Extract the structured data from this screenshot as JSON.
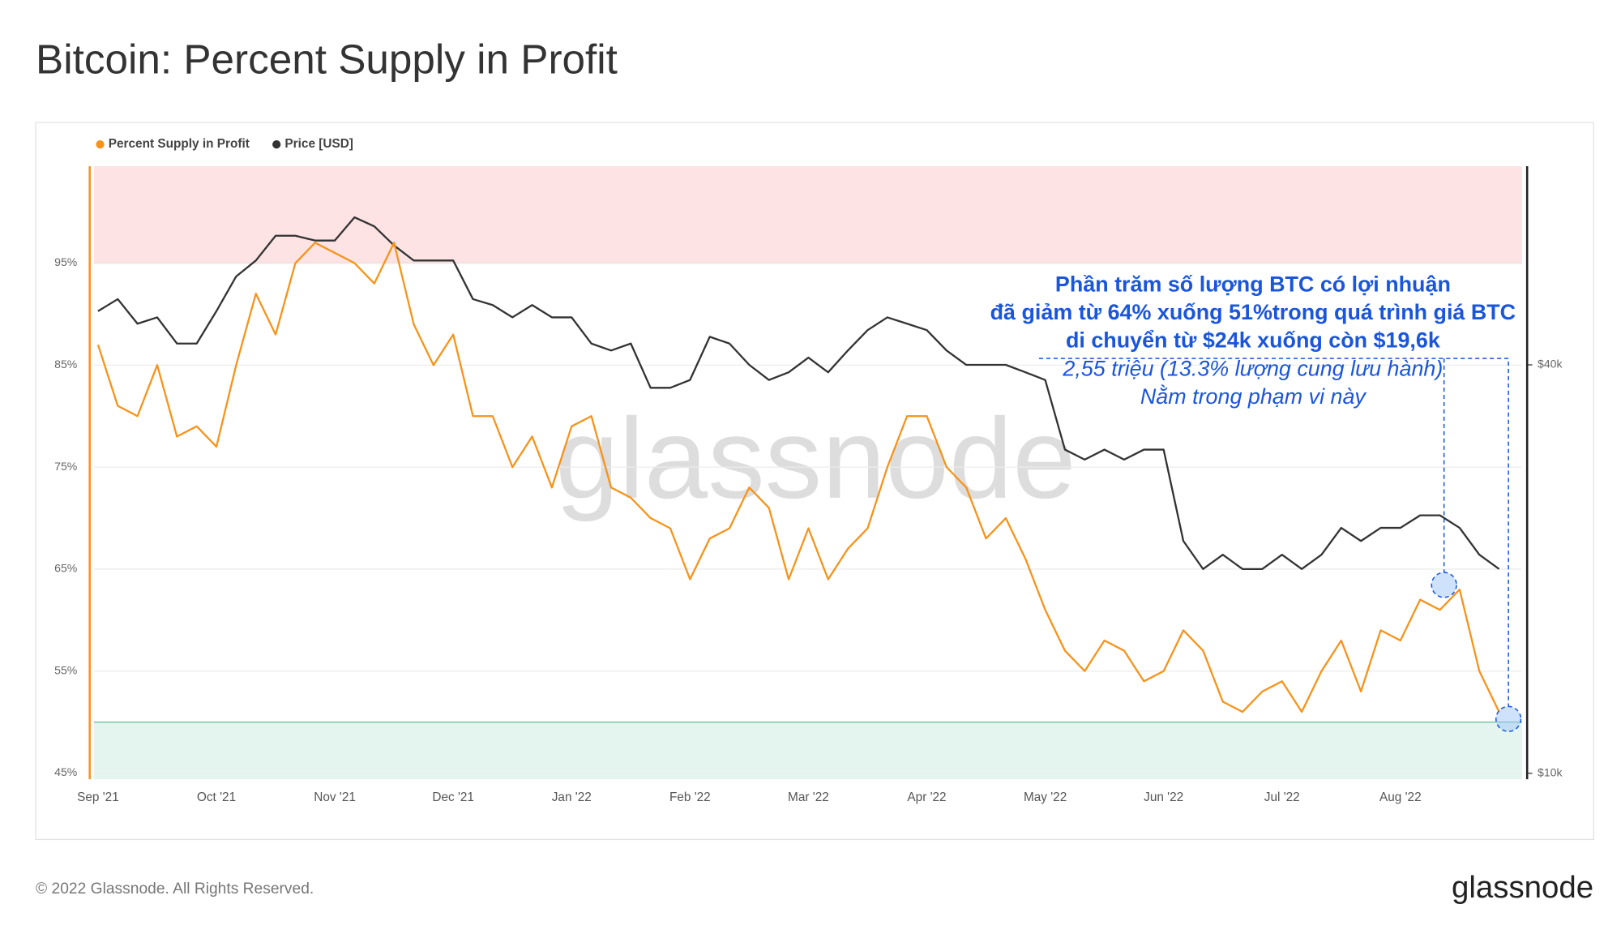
{
  "chart_data": {
    "type": "line",
    "title": "Bitcoin: Percent Supply in Profit",
    "watermark": "glassnode",
    "footer": "© 2022 Glassnode. All Rights Reserved.",
    "logo": "glassnode",
    "annotation": [
      "Phần trăm số lượng BTC có lợi nhuận",
      "đã giảm từ 64% xuống 51%trong quá trình giá BTC",
      "di chuyển từ $24k xuống còn $19,6k",
      "2,55 triệu (13.3% lượng cung lưu hành)",
      "Nằm trong phạm vi này"
    ],
    "categories": [
      "Sep '21",
      null,
      null,
      null,
      null,
      null,
      "Oct '21",
      null,
      null,
      null,
      null,
      null,
      "Nov '21",
      null,
      null,
      null,
      null,
      null,
      "Dec '21",
      null,
      null,
      null,
      null,
      null,
      "Jan '22",
      null,
      null,
      null,
      null,
      null,
      "Feb '22",
      null,
      null,
      null,
      null,
      null,
      "Mar '22",
      null,
      null,
      null,
      null,
      null,
      "Apr '22",
      null,
      null,
      null,
      null,
      null,
      "May '22",
      null,
      null,
      null,
      null,
      null,
      "Jun '22",
      null,
      null,
      null,
      null,
      null,
      "Jul '22",
      null,
      null,
      null,
      null,
      null,
      "Aug '22",
      null,
      null,
      null,
      null,
      null
    ],
    "series": [
      {
        "name": "Percent Supply in Profit",
        "color": "#f7931a",
        "axis": "y",
        "values": [
          87,
          81,
          80,
          85,
          78,
          79,
          77,
          85,
          92,
          88,
          95,
          97,
          96,
          95,
          93,
          97,
          89,
          85,
          88,
          80,
          80,
          75,
          78,
          73,
          79,
          80,
          73,
          72,
          70,
          69,
          64,
          68,
          69,
          73,
          71,
          64,
          69,
          64,
          67,
          69,
          75,
          80,
          80,
          75,
          73,
          68,
          70,
          66,
          61,
          57,
          55,
          58,
          57,
          54,
          55,
          59,
          57,
          52,
          51,
          53,
          54,
          51,
          55,
          58,
          53,
          59,
          58,
          62,
          61,
          63,
          55,
          51
        ]
      },
      {
        "name": "Price [USD]",
        "color": "#333333",
        "axis": "y2",
        "values": [
          48000,
          50000,
          46000,
          47000,
          43000,
          43000,
          48000,
          54000,
          57000,
          62000,
          62000,
          61000,
          61000,
          66000,
          64000,
          60000,
          57000,
          57000,
          57000,
          50000,
          49000,
          47000,
          49000,
          47000,
          47000,
          43000,
          42000,
          43000,
          37000,
          37000,
          38000,
          44000,
          43000,
          40000,
          38000,
          39000,
          41000,
          39000,
          42000,
          45000,
          47000,
          46000,
          45000,
          42000,
          40000,
          40000,
          40000,
          39000,
          38000,
          30000,
          29000,
          30000,
          29000,
          30000,
          30000,
          22000,
          20000,
          21000,
          20000,
          20000,
          21000,
          20000,
          21000,
          23000,
          22000,
          23000,
          23000,
          24000,
          24000,
          23000,
          21000,
          20000
        ]
      }
    ],
    "ylim": [
      44.4,
      104.5
    ],
    "yticks": [
      {
        "value": 45,
        "label": "45%"
      },
      {
        "value": 55,
        "label": "55%"
      },
      {
        "value": 65,
        "label": "65%"
      },
      {
        "value": 75,
        "label": "75%"
      },
      {
        "value": 85,
        "label": "85%"
      },
      {
        "value": 95,
        "label": "95%"
      }
    ],
    "y2lim": [
      9800,
      78500
    ],
    "y2scale": "log",
    "y2ticks": [
      {
        "value": 10000,
        "label": "$10k"
      },
      {
        "value": 40000,
        "label": "$40k"
      }
    ],
    "bands": [
      {
        "from": 95,
        "color": "#fde3e3",
        "line": "#e57373"
      },
      {
        "to": 50,
        "color": "#e3f5ee",
        "line": "#66bb99"
      }
    ],
    "grid": true,
    "legend": "top-left"
  }
}
